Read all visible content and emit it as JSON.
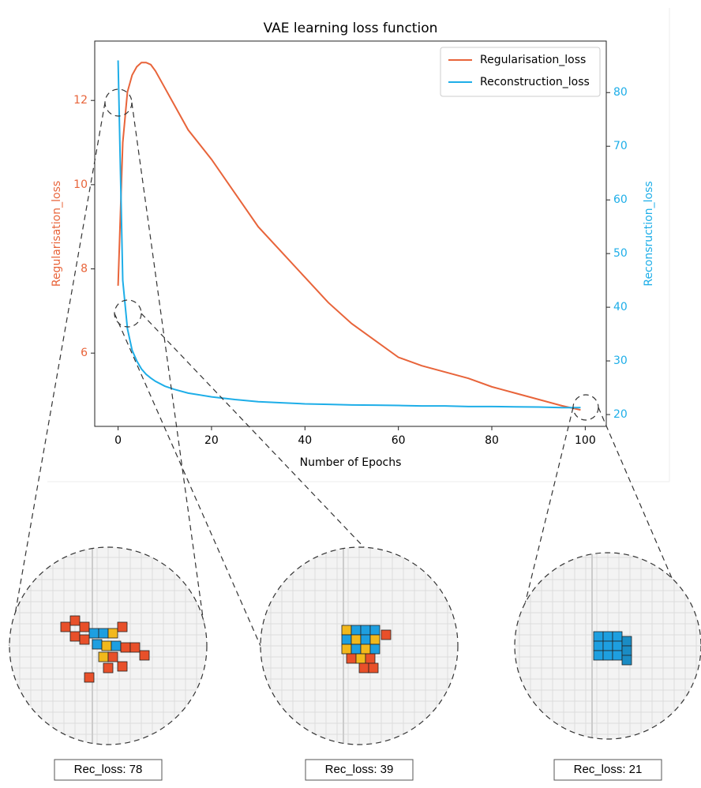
{
  "chart_data": {
    "type": "line",
    "title": "VAE learning loss function",
    "x_label": "Number of Epochs",
    "y_label": "Regularisation_loss",
    "y2_label": "Reconsruction_loss",
    "x": [
      0,
      1,
      2,
      3,
      4,
      5,
      6,
      7,
      8,
      10,
      12,
      15,
      20,
      25,
      30,
      35,
      40,
      45,
      50,
      55,
      60,
      65,
      70,
      75,
      80,
      85,
      90,
      95,
      99
    ],
    "series": [
      {
        "name": "Regularisation_loss",
        "color": "#e8643a",
        "axis": "y",
        "values": [
          7.6,
          11.0,
          12.2,
          12.6,
          12.8,
          12.9,
          12.9,
          12.85,
          12.7,
          12.3,
          11.9,
          11.3,
          10.6,
          9.8,
          9.0,
          8.4,
          7.8,
          7.2,
          6.7,
          6.3,
          5.9,
          5.7,
          5.55,
          5.4,
          5.2,
          5.05,
          4.9,
          4.75,
          4.65
        ]
      },
      {
        "name": "Reconstruction_loss",
        "color": "#1eaee8",
        "axis": "y2",
        "values": [
          86,
          45,
          36,
          32,
          30,
          28.5,
          27.5,
          26.8,
          26.2,
          25.3,
          24.7,
          24,
          23.3,
          22.8,
          22.4,
          22.2,
          22.0,
          21.9,
          21.8,
          21.75,
          21.7,
          21.6,
          21.6,
          21.5,
          21.5,
          21.45,
          21.4,
          21.3,
          21.3
        ]
      }
    ],
    "xlim": [
      -5,
      104.5
    ],
    "xticks": [
      0,
      20,
      40,
      60,
      80,
      100
    ],
    "ylim": [
      4.26,
      13.41
    ],
    "yticks": [
      6,
      8,
      10,
      12
    ],
    "y2lim": [
      17.8,
      89.6
    ],
    "y2ticks": [
      20,
      30,
      40,
      50,
      60,
      70,
      80
    ],
    "legend": "upper right"
  },
  "insets": [
    {
      "label": "Rec_loss: 78"
    },
    {
      "label": "Rec_loss: 39"
    },
    {
      "label": "Rec_loss: 21"
    }
  ]
}
